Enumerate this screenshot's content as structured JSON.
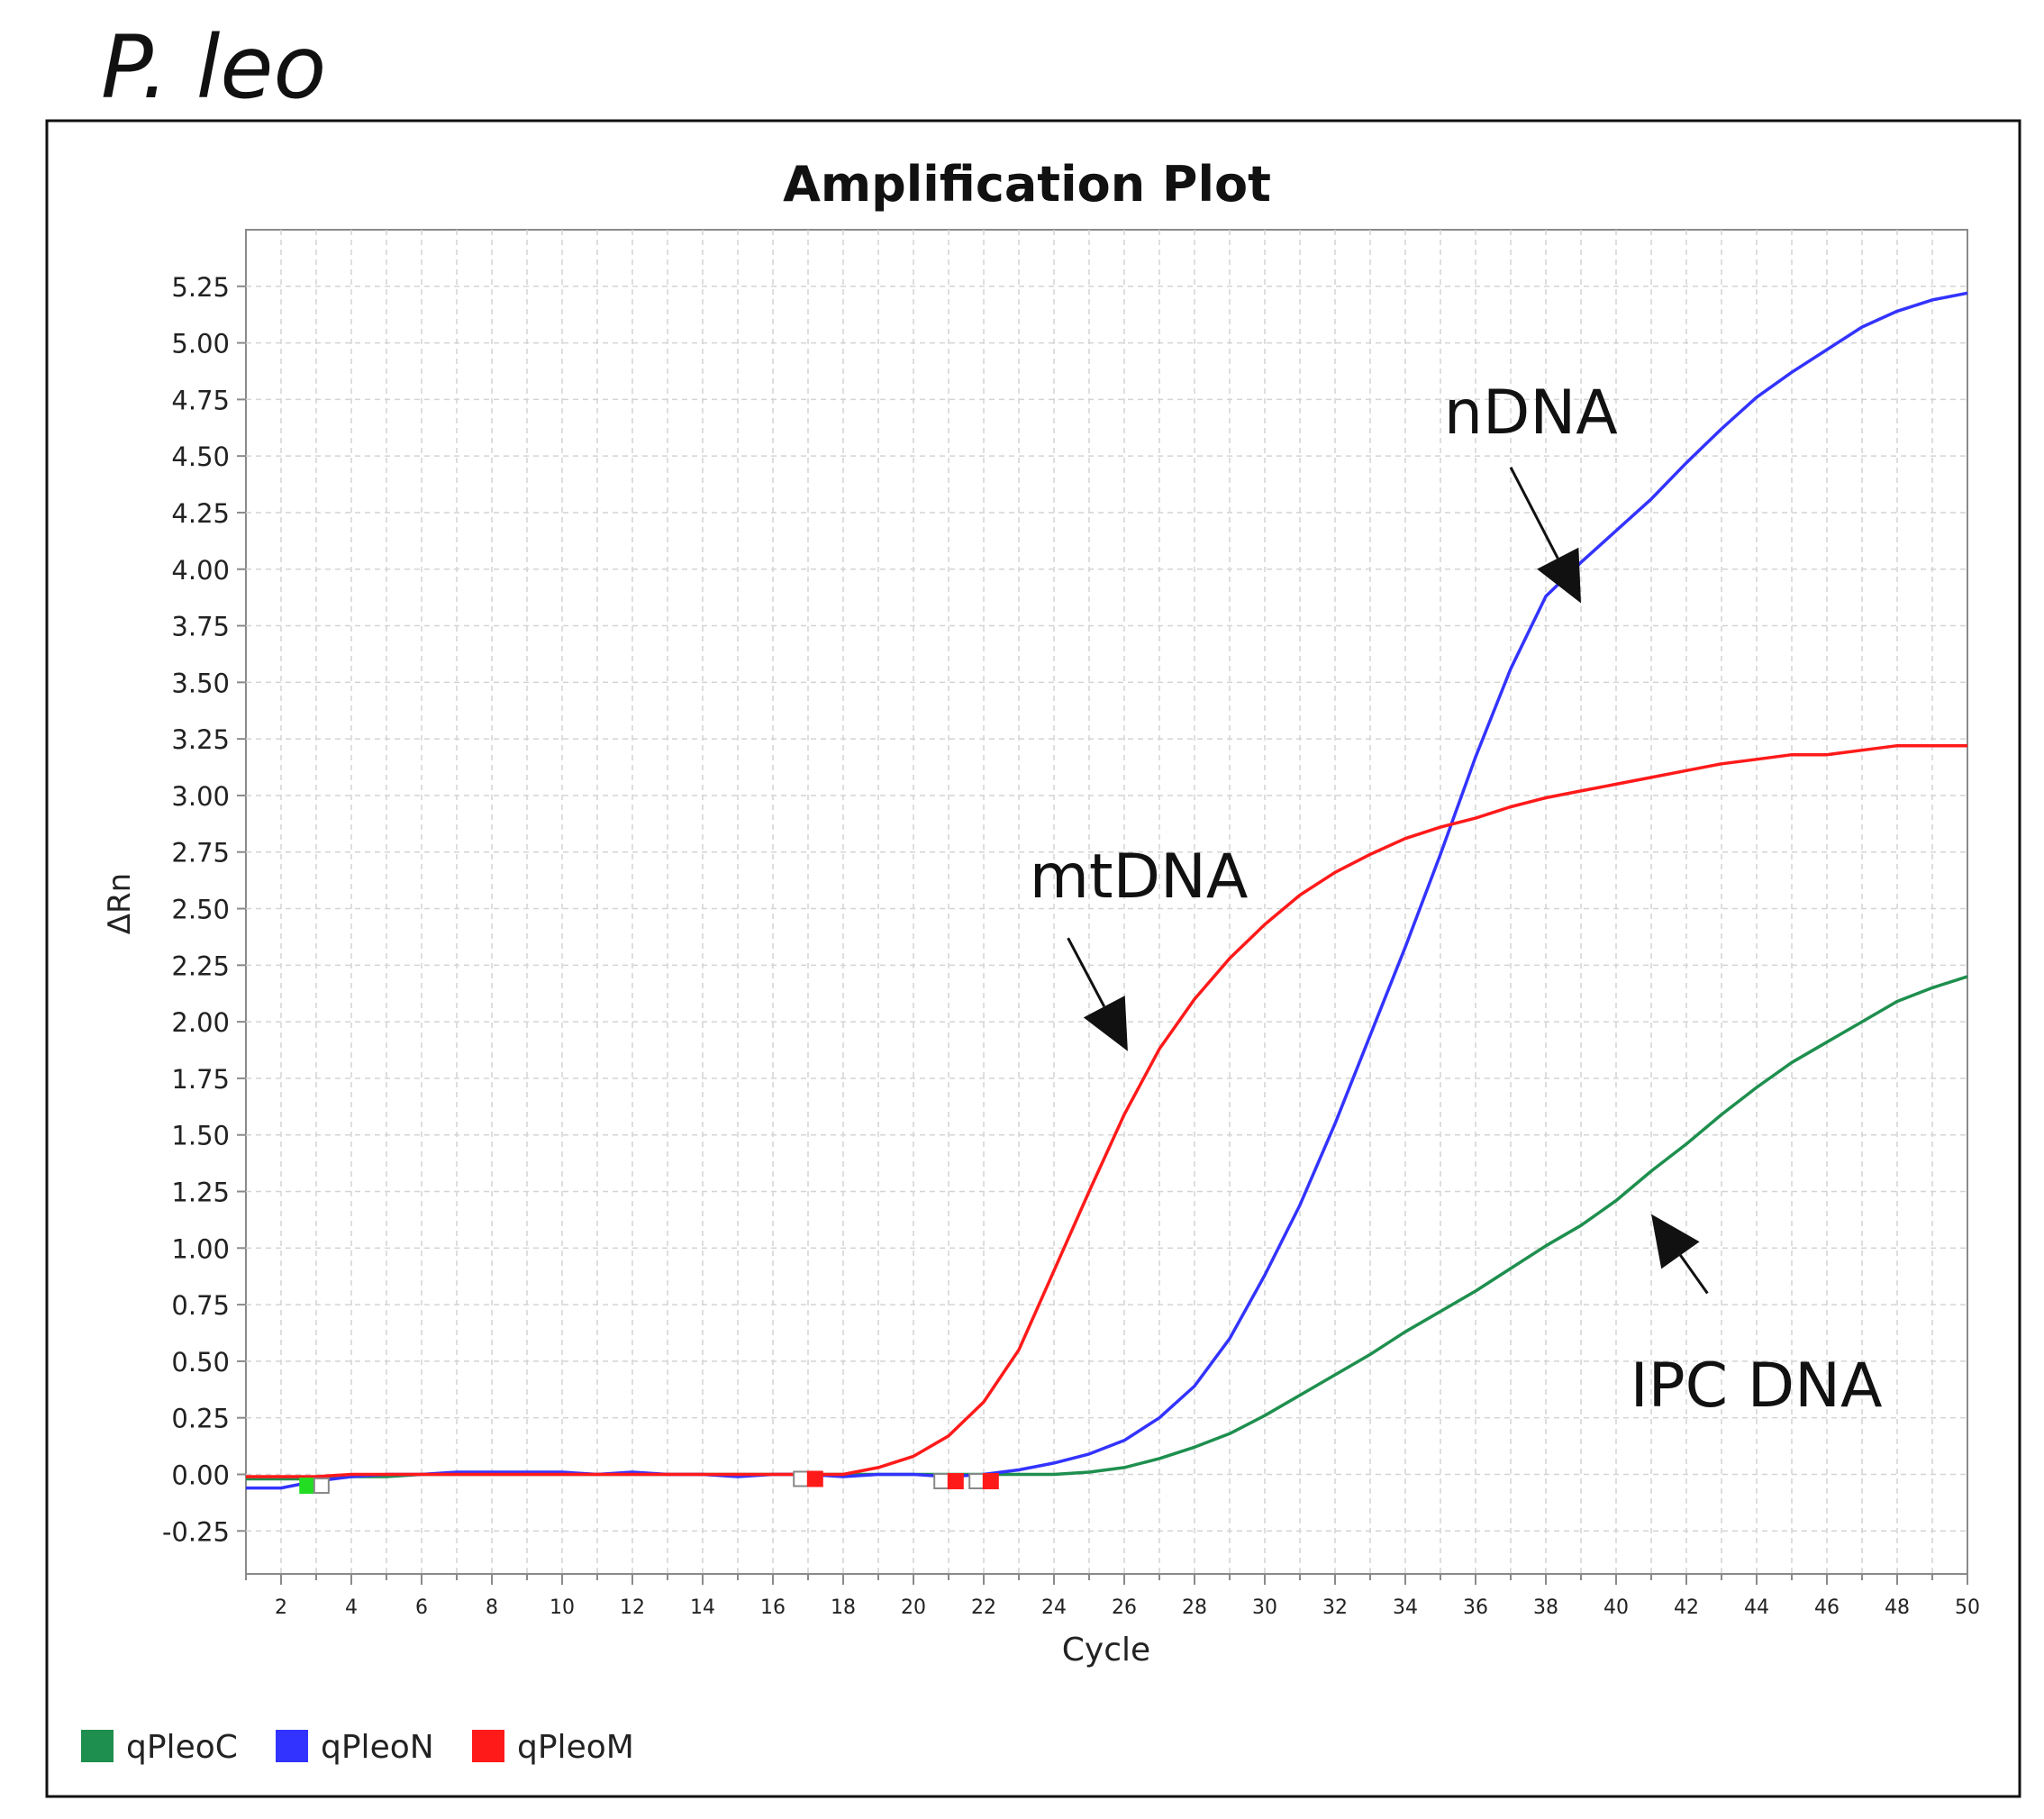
{
  "figure_label": "P. leo",
  "colors": {
    "qPleoC": "#1e8f4e",
    "qPleoN": "#3333ff",
    "qPleoM": "#ff1a1a",
    "marker_green": "#22dd22",
    "grid": "#d4d4d4",
    "axis": "#8a8a8a",
    "text": "#222222"
  },
  "chart_data": {
    "type": "line",
    "title": "Amplification Plot",
    "xlabel": "Cycle",
    "ylabel": "ΔRn",
    "xlim": [
      1,
      50
    ],
    "ylim": [
      -0.44,
      5.5
    ],
    "x_ticks": [
      2,
      4,
      6,
      8,
      10,
      12,
      14,
      16,
      18,
      20,
      22,
      24,
      26,
      28,
      30,
      32,
      34,
      36,
      38,
      40,
      42,
      44,
      46,
      48,
      50
    ],
    "x_tick_labels": [
      "2",
      "4",
      "6",
      "8",
      "10",
      "12",
      "14",
      "16",
      "18",
      "20",
      "22",
      "24",
      "26",
      "28",
      "30",
      "32",
      "34",
      "36",
      "38",
      "40",
      "42",
      "44",
      "46",
      "48",
      "50"
    ],
    "y_ticks": [
      -0.25,
      0,
      0.25,
      0.5,
      0.75,
      1,
      1.25,
      1.5,
      1.75,
      2,
      2.25,
      2.5,
      2.75,
      3,
      3.25,
      3.5,
      3.75,
      4,
      4.25,
      4.5,
      4.75,
      5,
      5.25
    ],
    "y_tick_labels": [
      "-0.25",
      "0.00",
      "0.25",
      "0.50",
      "0.75",
      "1.00",
      "1.25",
      "1.50",
      "1.75",
      "2.00",
      "2.25",
      "2.50",
      "2.75",
      "3.00",
      "3.25",
      "3.50",
      "3.75",
      "4.00",
      "4.25",
      "4.50",
      "4.75",
      "5.00",
      "5.25"
    ],
    "grid": true,
    "legend_position": "bottom-left",
    "series": [
      {
        "name": "qPleoC",
        "color": "#1e8f4e",
        "x": [
          1,
          2,
          3,
          4,
          5,
          6,
          7,
          8,
          9,
          10,
          11,
          12,
          13,
          14,
          15,
          16,
          17,
          18,
          19,
          20,
          21,
          22,
          23,
          24,
          25,
          26,
          27,
          28,
          29,
          30,
          31,
          32,
          33,
          34,
          35,
          36,
          37,
          38,
          39,
          40,
          41,
          42,
          43,
          44,
          45,
          46,
          47,
          48,
          49,
          50
        ],
        "y": [
          -0.02,
          -0.02,
          -0.02,
          -0.01,
          -0.01,
          0.0,
          0.0,
          0.0,
          0.0,
          0.0,
          0.0,
          0.0,
          0.0,
          0.0,
          0.0,
          0.0,
          0.0,
          0.0,
          0.0,
          0.0,
          0.0,
          0.0,
          0.0,
          0.0,
          0.01,
          0.03,
          0.07,
          0.12,
          0.18,
          0.26,
          0.35,
          0.44,
          0.53,
          0.63,
          0.72,
          0.81,
          0.91,
          1.01,
          1.1,
          1.21,
          1.34,
          1.46,
          1.59,
          1.71,
          1.82,
          1.91,
          2.0,
          2.09,
          2.15,
          2.2
        ]
      },
      {
        "name": "qPleoN",
        "color": "#3333ff",
        "x": [
          1,
          2,
          3,
          4,
          5,
          6,
          7,
          8,
          9,
          10,
          11,
          12,
          13,
          14,
          15,
          16,
          17,
          18,
          19,
          20,
          21,
          22,
          23,
          24,
          25,
          26,
          27,
          28,
          29,
          30,
          31,
          32,
          33,
          34,
          35,
          36,
          37,
          38,
          39,
          40,
          41,
          42,
          43,
          44,
          45,
          46,
          47,
          48,
          49,
          50
        ],
        "y": [
          -0.06,
          -0.06,
          -0.03,
          -0.01,
          0.0,
          0.0,
          0.01,
          0.01,
          0.01,
          0.01,
          0.0,
          0.01,
          0.0,
          0.0,
          -0.01,
          0.0,
          0.0,
          -0.01,
          0.0,
          0.0,
          -0.01,
          0.0,
          0.02,
          0.05,
          0.09,
          0.15,
          0.25,
          0.39,
          0.6,
          0.88,
          1.19,
          1.55,
          1.94,
          2.33,
          2.74,
          3.17,
          3.56,
          3.88,
          4.03,
          4.17,
          4.31,
          4.47,
          4.62,
          4.76,
          4.87,
          4.97,
          5.07,
          5.14,
          5.19,
          5.22
        ]
      },
      {
        "name": "qPleoM",
        "color": "#ff1a1a",
        "x": [
          1,
          2,
          3,
          4,
          5,
          6,
          7,
          8,
          9,
          10,
          11,
          12,
          13,
          14,
          15,
          16,
          17,
          18,
          19,
          20,
          21,
          22,
          23,
          24,
          25,
          26,
          27,
          28,
          29,
          30,
          31,
          32,
          33,
          34,
          35,
          36,
          37,
          38,
          39,
          40,
          41,
          42,
          43,
          44,
          45,
          46,
          47,
          48,
          49,
          50
        ],
        "y": [
          -0.01,
          -0.01,
          -0.01,
          0.0,
          0.0,
          0.0,
          0.0,
          0.0,
          0.0,
          0.0,
          0.0,
          0.0,
          0.0,
          0.0,
          0.0,
          0.0,
          0.0,
          0.0,
          0.03,
          0.08,
          0.17,
          0.32,
          0.55,
          0.9,
          1.25,
          1.59,
          1.88,
          2.1,
          2.28,
          2.43,
          2.56,
          2.66,
          2.74,
          2.81,
          2.86,
          2.9,
          2.95,
          2.99,
          3.02,
          3.05,
          3.08,
          3.11,
          3.14,
          3.16,
          3.18,
          3.18,
          3.2,
          3.22,
          3.22,
          3.22
        ]
      }
    ],
    "markers": [
      {
        "x": 2.75,
        "y": -0.05,
        "color": "#22dd22",
        "filled": true
      },
      {
        "x": 3.15,
        "y": -0.05,
        "color": "#888888",
        "filled": false
      },
      {
        "x": 16.8,
        "y": -0.02,
        "color": "#888888",
        "filled": false
      },
      {
        "x": 17.2,
        "y": -0.02,
        "color": "#ff1a1a",
        "filled": true
      },
      {
        "x": 20.8,
        "y": -0.03,
        "color": "#888888",
        "filled": false
      },
      {
        "x": 21.2,
        "y": -0.03,
        "color": "#ff1a1a",
        "filled": true
      },
      {
        "x": 21.8,
        "y": -0.03,
        "color": "#888888",
        "filled": false
      },
      {
        "x": 22.2,
        "y": -0.03,
        "color": "#ff1a1a",
        "filled": true
      }
    ],
    "annotations": [
      {
        "text": "nDNA",
        "x": 35.1,
        "y": 4.6,
        "arrow_from": [
          37.0,
          4.45
        ],
        "arrow_to": [
          39.0,
          3.85
        ]
      },
      {
        "text": "mtDNA",
        "x": 23.3,
        "y": 2.55,
        "arrow_from": [
          24.4,
          2.37
        ],
        "arrow_to": [
          26.1,
          1.87
        ]
      },
      {
        "text": "IPC DNA",
        "x": 40.4,
        "y": 0.3,
        "arrow_from": [
          42.6,
          0.8
        ],
        "arrow_to": [
          41.0,
          1.15
        ]
      }
    ],
    "legend": [
      {
        "label": "qPleoC",
        "color": "#1e8f4e"
      },
      {
        "label": "qPleoN",
        "color": "#3333ff"
      },
      {
        "label": "qPleoM",
        "color": "#ff1a1a"
      }
    ]
  }
}
